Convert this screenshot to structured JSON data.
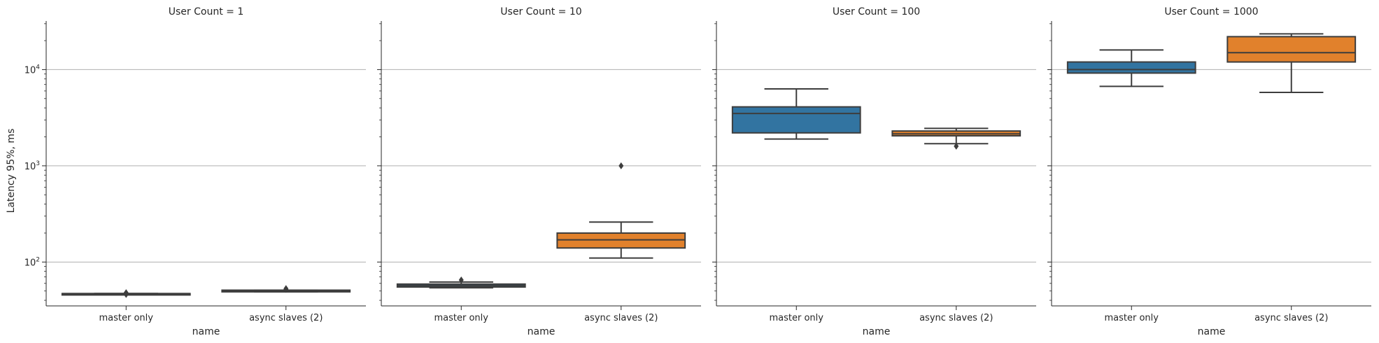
{
  "chart_data": {
    "type": "box",
    "ylabel": "Latency 95%, ms",
    "y_scale": "log",
    "ylim": [
      35,
      32000
    ],
    "y_ticks": [
      {
        "value": 100,
        "base": "10",
        "exp": "2"
      },
      {
        "value": 1000,
        "base": "10",
        "exp": "3"
      },
      {
        "value": 10000,
        "base": "10",
        "exp": "4"
      }
    ],
    "grid": "horizontal-major",
    "colors": {
      "master only": "#3274a1",
      "async slaves (2)": "#e1812c"
    },
    "panels": [
      {
        "title": "User Count = 1",
        "xlabel": "name",
        "categories": [
          "master only",
          "async slaves (2)"
        ],
        "boxes": [
          {
            "name": "master only",
            "min": 47,
            "q1": 47,
            "median": 47,
            "q3": 47,
            "max": 47,
            "outliers": [
              46,
              48
            ]
          },
          {
            "name": "async slaves (2)",
            "min": 49,
            "q1": 49,
            "median": 50,
            "q3": 51,
            "max": 51,
            "outliers": [
              52,
              53
            ]
          }
        ]
      },
      {
        "title": "User Count = 10",
        "xlabel": "name",
        "categories": [
          "master only",
          "async slaves (2)"
        ],
        "boxes": [
          {
            "name": "master only",
            "min": 54,
            "q1": 55,
            "median": 57,
            "q3": 59,
            "max": 62,
            "outliers": [
              65
            ]
          },
          {
            "name": "async slaves (2)",
            "min": 110,
            "q1": 140,
            "median": 170,
            "q3": 200,
            "max": 260,
            "outliers": [
              1000
            ]
          }
        ]
      },
      {
        "title": "User Count = 100",
        "xlabel": "name",
        "categories": [
          "master only",
          "async slaves (2)"
        ],
        "boxes": [
          {
            "name": "master only",
            "min": 1900,
            "q1": 2200,
            "median": 3500,
            "q3": 4100,
            "max": 6300,
            "outliers": []
          },
          {
            "name": "async slaves (2)",
            "min": 1700,
            "q1": 2050,
            "median": 2150,
            "q3": 2300,
            "max": 2450,
            "outliers": [
              1600
            ]
          }
        ]
      },
      {
        "title": "User Count = 1000",
        "xlabel": "name",
        "categories": [
          "master only",
          "async slaves (2)"
        ],
        "boxes": [
          {
            "name": "master only",
            "min": 6700,
            "q1": 9200,
            "median": 10000,
            "q3": 12000,
            "max": 16000,
            "outliers": []
          },
          {
            "name": "async slaves (2)",
            "min": 5800,
            "q1": 12000,
            "median": 15000,
            "q3": 22000,
            "max": 23500,
            "outliers": []
          }
        ]
      }
    ]
  }
}
